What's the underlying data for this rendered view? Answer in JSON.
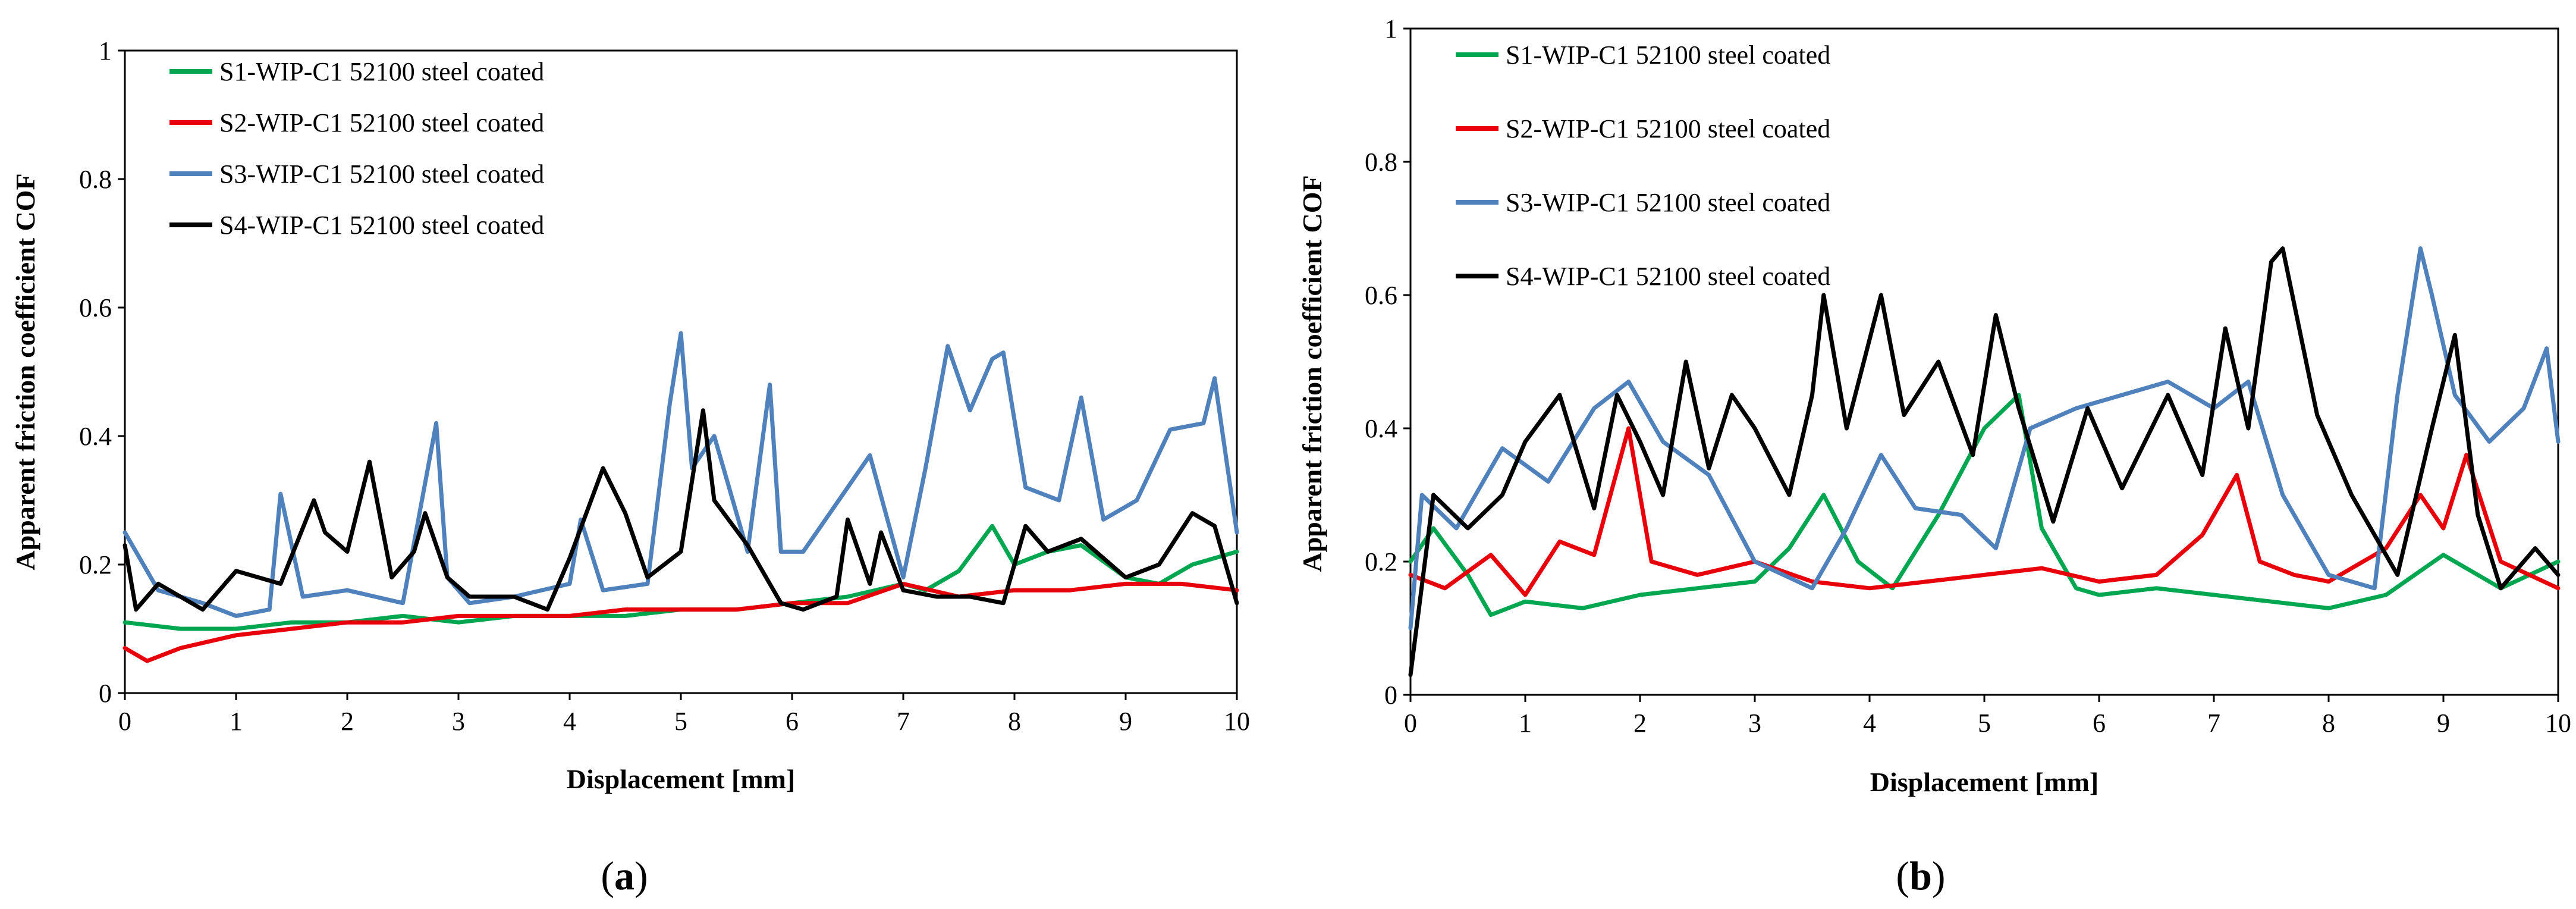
{
  "figure": {
    "panels": [
      {
        "id": "a",
        "caption_open": "(",
        "caption_letter": "a",
        "caption_close": ")"
      },
      {
        "id": "b",
        "caption_open": "(",
        "caption_letter": "b",
        "caption_close": ")"
      }
    ]
  },
  "chart_data": [
    {
      "type": "line",
      "panel": "a",
      "title": "",
      "xlabel": "Displacement [mm]",
      "ylabel": "Apparent friction coefficient COF",
      "xlim": [
        0,
        10
      ],
      "ylim": [
        0,
        1
      ],
      "xticks": [
        0,
        1,
        2,
        3,
        4,
        5,
        6,
        7,
        8,
        9,
        10
      ],
      "yticks": [
        0,
        0.2,
        0.4,
        0.6,
        0.8,
        1
      ],
      "ytick_labels": [
        "0",
        "0.2",
        "0.4",
        "0.6",
        "0.8",
        "1"
      ],
      "grid": false,
      "legend_position": "top-left",
      "series": [
        {
          "name": "S1-WIP-C1 52100 steel coated",
          "color": "#00a650",
          "x": [
            0,
            0.5,
            1,
            1.5,
            2,
            2.5,
            3,
            3.5,
            4,
            4.5,
            5,
            5.5,
            6,
            6.5,
            7,
            7.2,
            7.5,
            7.8,
            8,
            8.3,
            8.6,
            9,
            9.3,
            9.6,
            10
          ],
          "values": [
            0.11,
            0.1,
            0.1,
            0.11,
            0.11,
            0.12,
            0.11,
            0.12,
            0.12,
            0.12,
            0.13,
            0.13,
            0.14,
            0.15,
            0.17,
            0.16,
            0.19,
            0.26,
            0.2,
            0.22,
            0.23,
            0.18,
            0.17,
            0.2,
            0.22
          ]
        },
        {
          "name": "S2-WIP-C1 52100 steel coated",
          "color": "#e8000b",
          "x": [
            0,
            0.2,
            0.5,
            1,
            1.5,
            2,
            2.5,
            3,
            3.5,
            4,
            4.5,
            5,
            5.5,
            6,
            6.5,
            7,
            7.5,
            8,
            8.5,
            9,
            9.5,
            10
          ],
          "values": [
            0.07,
            0.05,
            0.07,
            0.09,
            0.1,
            0.11,
            0.11,
            0.12,
            0.12,
            0.12,
            0.13,
            0.13,
            0.13,
            0.14,
            0.14,
            0.17,
            0.15,
            0.16,
            0.16,
            0.17,
            0.17,
            0.16
          ]
        },
        {
          "name": "S3-WIP-C1 52100 steel coated",
          "color": "#4f81bd",
          "x": [
            0,
            0.3,
            0.7,
            1,
            1.3,
            1.4,
            1.6,
            2,
            2.5,
            2.8,
            2.9,
            3.1,
            3.5,
            4,
            4.1,
            4.3,
            4.7,
            4.9,
            5,
            5.1,
            5.3,
            5.6,
            5.8,
            5.9,
            6.1,
            6.5,
            6.7,
            7,
            7.2,
            7.4,
            7.6,
            7.8,
            7.9,
            8.1,
            8.4,
            8.6,
            8.8,
            9.1,
            9.4,
            9.7,
            9.8,
            10
          ],
          "values": [
            0.25,
            0.16,
            0.14,
            0.12,
            0.13,
            0.31,
            0.15,
            0.16,
            0.14,
            0.42,
            0.18,
            0.14,
            0.15,
            0.17,
            0.27,
            0.16,
            0.17,
            0.45,
            0.56,
            0.35,
            0.4,
            0.22,
            0.48,
            0.22,
            0.22,
            0.32,
            0.37,
            0.18,
            0.35,
            0.54,
            0.44,
            0.52,
            0.53,
            0.32,
            0.3,
            0.46,
            0.27,
            0.3,
            0.41,
            0.42,
            0.49,
            0.25
          ]
        },
        {
          "name": "S4-WIP-C1 52100 steel coated",
          "color": "#000000",
          "x": [
            0,
            0.1,
            0.3,
            0.7,
            1,
            1.4,
            1.7,
            1.8,
            2,
            2.2,
            2.4,
            2.6,
            2.7,
            2.9,
            3.1,
            3.5,
            3.8,
            4,
            4.3,
            4.5,
            4.7,
            5,
            5.2,
            5.3,
            5.6,
            5.9,
            6.1,
            6.4,
            6.5,
            6.7,
            6.8,
            7,
            7.3,
            7.6,
            7.9,
            8.1,
            8.3,
            8.6,
            9,
            9.3,
            9.6,
            9.8,
            10
          ],
          "values": [
            0.23,
            0.13,
            0.17,
            0.13,
            0.19,
            0.17,
            0.3,
            0.25,
            0.22,
            0.36,
            0.18,
            0.22,
            0.28,
            0.18,
            0.15,
            0.15,
            0.13,
            0.21,
            0.35,
            0.28,
            0.18,
            0.22,
            0.44,
            0.3,
            0.23,
            0.14,
            0.13,
            0.15,
            0.27,
            0.17,
            0.25,
            0.16,
            0.15,
            0.15,
            0.14,
            0.26,
            0.22,
            0.24,
            0.18,
            0.2,
            0.28,
            0.26,
            0.14
          ]
        }
      ]
    },
    {
      "type": "line",
      "panel": "b",
      "title": "",
      "xlabel": "Displacement [mm]",
      "ylabel": "Apparent friction coefficient COF",
      "xlim": [
        0,
        10
      ],
      "ylim": [
        0,
        1
      ],
      "xticks": [
        0,
        1,
        2,
        3,
        4,
        5,
        6,
        7,
        8,
        9,
        10
      ],
      "yticks": [
        0,
        0.2,
        0.4,
        0.6,
        0.8,
        1
      ],
      "ytick_labels": [
        "0",
        "0.2",
        "0.4",
        "0.6",
        "0.8",
        "1"
      ],
      "grid": false,
      "legend_position": "top-left",
      "series": [
        {
          "name": "S1-WIP-C1 52100 steel coated",
          "color": "#00a650",
          "x": [
            0,
            0.2,
            0.5,
            0.7,
            1,
            1.5,
            2,
            2.5,
            3,
            3.3,
            3.6,
            3.9,
            4.2,
            4.6,
            5,
            5.3,
            5.5,
            5.8,
            6,
            6.5,
            7,
            7.5,
            8,
            8.5,
            9,
            9.5,
            10
          ],
          "values": [
            0.2,
            0.25,
            0.18,
            0.12,
            0.14,
            0.13,
            0.15,
            0.16,
            0.17,
            0.22,
            0.3,
            0.2,
            0.16,
            0.27,
            0.4,
            0.45,
            0.25,
            0.16,
            0.15,
            0.16,
            0.15,
            0.14,
            0.13,
            0.15,
            0.21,
            0.16,
            0.2
          ]
        },
        {
          "name": "S2-WIP-C1 52100 steel coated",
          "color": "#e8000b",
          "x": [
            0,
            0.3,
            0.7,
            1,
            1.3,
            1.6,
            1.9,
            2.1,
            2.5,
            3,
            3.5,
            4,
            4.5,
            5,
            5.5,
            6,
            6.5,
            6.9,
            7.2,
            7.4,
            7.7,
            8,
            8.5,
            8.8,
            9,
            9.2,
            9.5,
            10
          ],
          "values": [
            0.18,
            0.16,
            0.21,
            0.15,
            0.23,
            0.21,
            0.4,
            0.2,
            0.18,
            0.2,
            0.17,
            0.16,
            0.17,
            0.18,
            0.19,
            0.17,
            0.18,
            0.24,
            0.33,
            0.2,
            0.18,
            0.17,
            0.22,
            0.3,
            0.25,
            0.36,
            0.2,
            0.16
          ]
        },
        {
          "name": "S3-WIP-C1 52100 steel coated",
          "color": "#4f81bd",
          "x": [
            0,
            0.1,
            0.4,
            0.8,
            1.2,
            1.6,
            1.9,
            2.2,
            2.6,
            3,
            3.5,
            3.8,
            4.1,
            4.4,
            4.8,
            5.1,
            5.4,
            5.8,
            6.2,
            6.6,
            7,
            7.3,
            7.6,
            8,
            8.4,
            8.6,
            8.8,
            8.9,
            9.1,
            9.4,
            9.7,
            9.9,
            10
          ],
          "values": [
            0.1,
            0.3,
            0.25,
            0.37,
            0.32,
            0.43,
            0.47,
            0.38,
            0.33,
            0.2,
            0.16,
            0.25,
            0.36,
            0.28,
            0.27,
            0.22,
            0.4,
            0.43,
            0.45,
            0.47,
            0.43,
            0.47,
            0.3,
            0.18,
            0.16,
            0.45,
            0.67,
            0.6,
            0.45,
            0.38,
            0.43,
            0.52,
            0.38
          ]
        },
        {
          "name": "S4-WIP-C1 52100 steel coated",
          "color": "#000000",
          "x": [
            0,
            0.2,
            0.5,
            0.8,
            1,
            1.3,
            1.6,
            1.8,
            2,
            2.2,
            2.4,
            2.6,
            2.8,
            3,
            3.3,
            3.5,
            3.6,
            3.8,
            4.1,
            4.3,
            4.6,
            4.9,
            5.1,
            5.3,
            5.6,
            5.9,
            6.2,
            6.6,
            6.9,
            7.1,
            7.3,
            7.5,
            7.6,
            7.9,
            8.2,
            8.6,
            8.9,
            9.1,
            9.3,
            9.5,
            9.8,
            10
          ],
          "values": [
            0.03,
            0.3,
            0.25,
            0.3,
            0.38,
            0.45,
            0.28,
            0.45,
            0.38,
            0.3,
            0.5,
            0.34,
            0.45,
            0.4,
            0.3,
            0.45,
            0.6,
            0.4,
            0.6,
            0.42,
            0.5,
            0.36,
            0.57,
            0.43,
            0.26,
            0.43,
            0.31,
            0.45,
            0.33,
            0.55,
            0.4,
            0.65,
            0.67,
            0.42,
            0.3,
            0.18,
            0.4,
            0.54,
            0.27,
            0.16,
            0.22,
            0.18
          ]
        }
      ]
    }
  ]
}
